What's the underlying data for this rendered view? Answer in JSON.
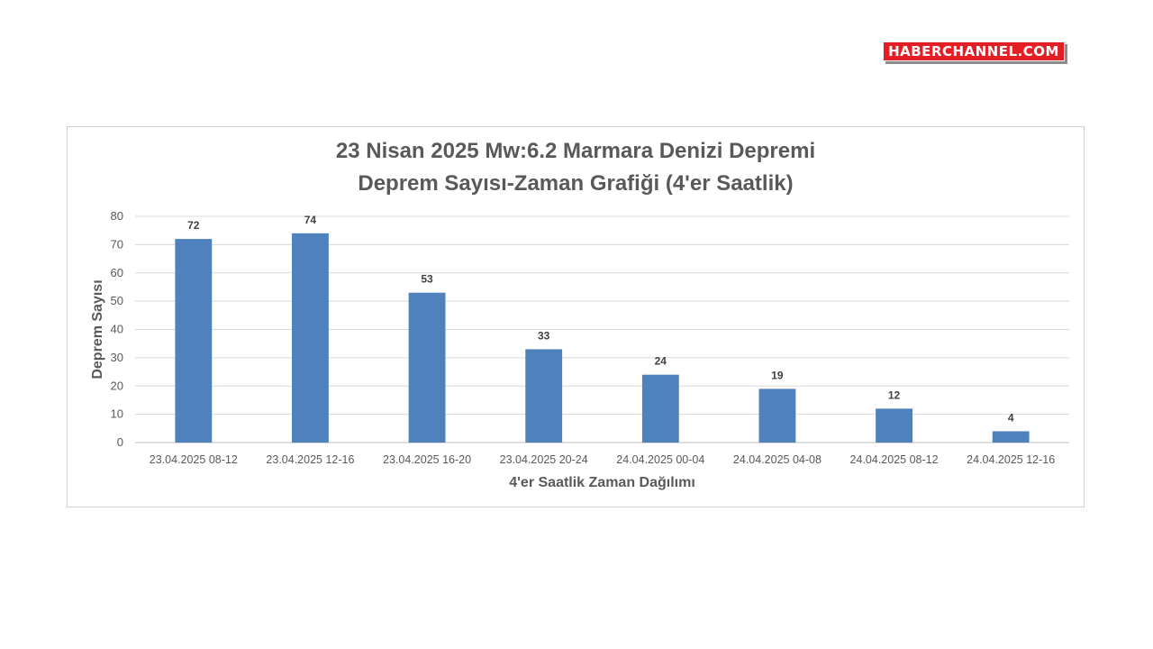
{
  "logo": {
    "text": "HABERCHANNEL.COM"
  },
  "chart_data": {
    "type": "bar",
    "title_line1": "23 Nisan 2025 Mw:6.2 Marmara Denizi Depremi",
    "title_line2": "Deprem Sayısı-Zaman Grafiği (4'er Saatlik)",
    "xlabel": "4'er Saatlik Zaman Dağılımı",
    "ylabel": "Deprem Sayısı",
    "categories": [
      "23.04.2025 08-12",
      "23.04.2025 12-16",
      "23.04.2025 16-20",
      "23.04.2025 20-24",
      "24.04.2025 00-04",
      "24.04.2025 04-08",
      "24.04.2025 08-12",
      "24.04.2025 12-16"
    ],
    "values": [
      72,
      74,
      53,
      33,
      24,
      19,
      12,
      4
    ],
    "ylim": [
      0,
      80
    ],
    "yticks": [
      0,
      10,
      20,
      30,
      40,
      50,
      60,
      70,
      80
    ],
    "grid": true,
    "bar_color": "#4f81bd",
    "data_labels": true
  }
}
